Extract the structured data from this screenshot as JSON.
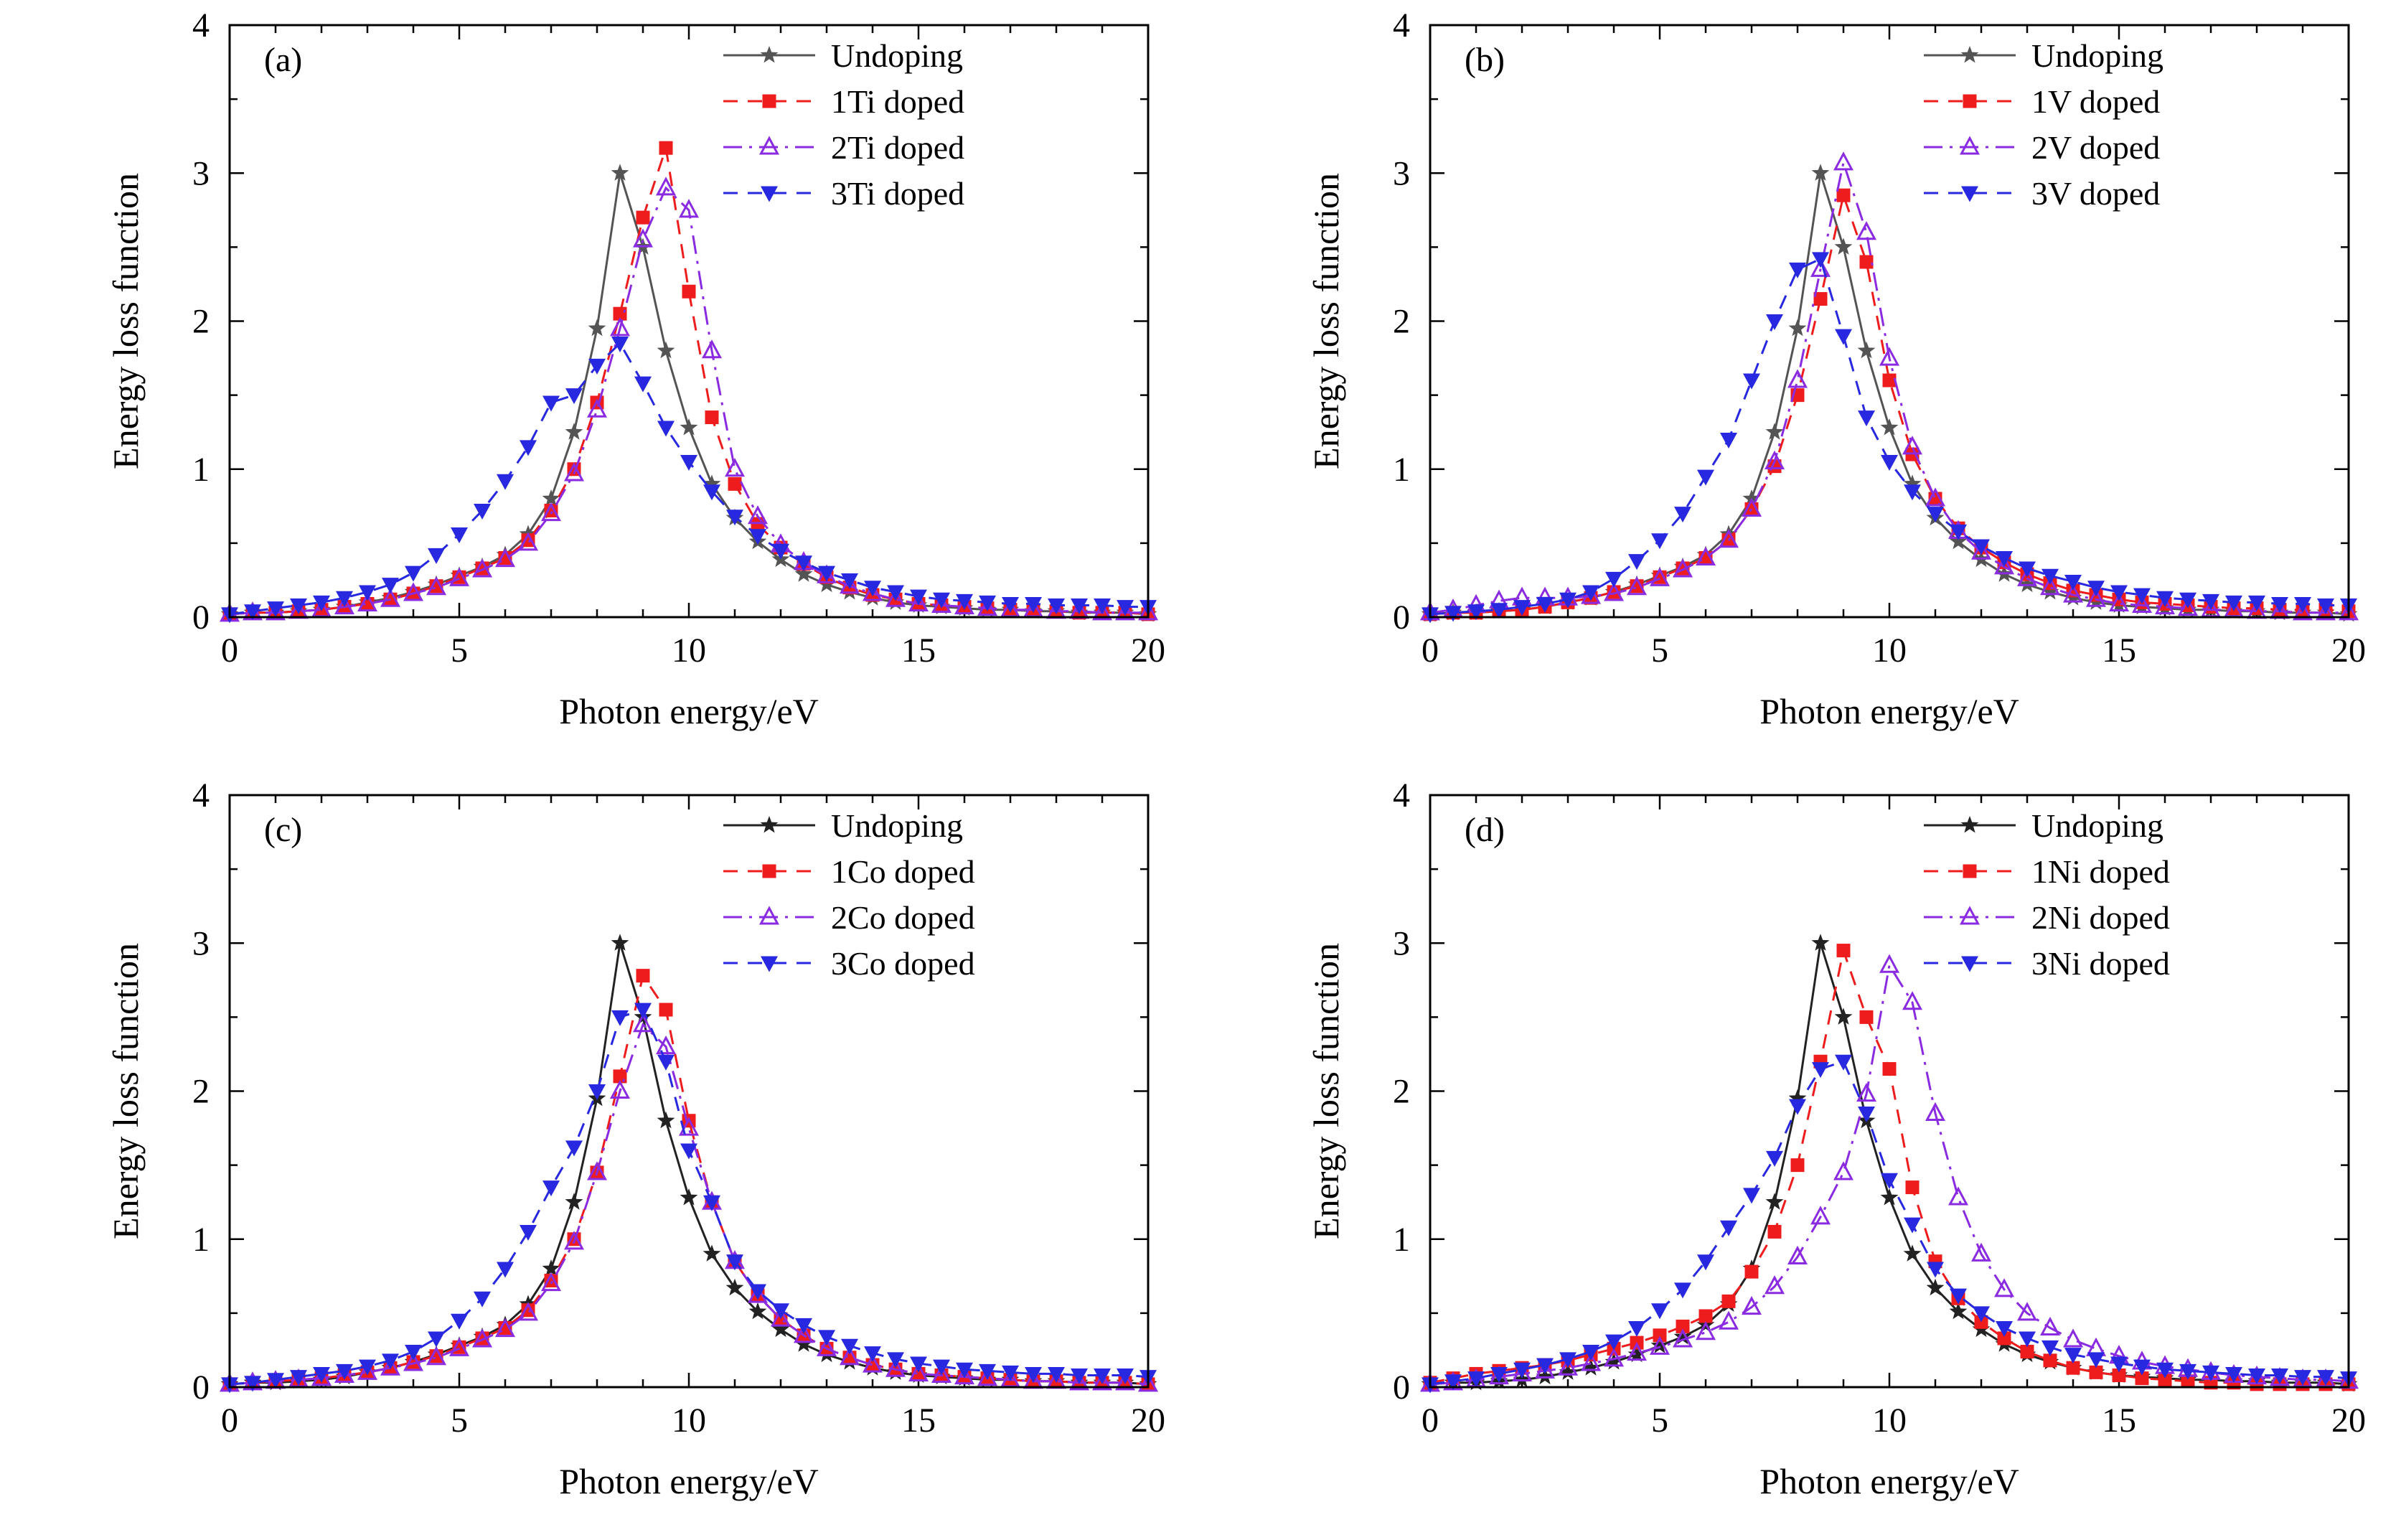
{
  "figure": {
    "background": "#ffffff",
    "frame_color": "#000000",
    "x_values": [
      0,
      0.5,
      1,
      1.5,
      2,
      2.5,
      3,
      3.5,
      4,
      4.5,
      5,
      5.5,
      6,
      6.5,
      7,
      7.5,
      8,
      8.5,
      9,
      9.5,
      10,
      10.5,
      11,
      11.5,
      12,
      12.5,
      13,
      13.5,
      14,
      14.5,
      15,
      15.5,
      16,
      16.5,
      17,
      17.5,
      18,
      18.5,
      19,
      19.5,
      20
    ]
  },
  "chart_data": [
    {
      "type": "line",
      "panel_label": "(a)",
      "title": "",
      "xlabel": "Photon energy/eV",
      "ylabel": "Energy loss function",
      "xlim": [
        0,
        20
      ],
      "ylim": [
        0,
        4
      ],
      "xticks": [
        0,
        5,
        10,
        15,
        20
      ],
      "yticks": [
        0,
        1,
        2,
        3,
        4
      ],
      "legend_position": "top-right",
      "series": [
        {
          "name": "Undoping",
          "color": "#545454",
          "line": "solid",
          "marker": "star",
          "values": [
            0.02,
            0.03,
            0.03,
            0.04,
            0.05,
            0.07,
            0.1,
            0.13,
            0.17,
            0.22,
            0.28,
            0.34,
            0.42,
            0.56,
            0.8,
            1.25,
            1.95,
            3.0,
            2.5,
            1.8,
            1.28,
            0.9,
            0.67,
            0.51,
            0.39,
            0.29,
            0.22,
            0.17,
            0.13,
            0.1,
            0.08,
            0.07,
            0.06,
            0.05,
            0.05,
            0.04,
            0.04,
            0.03,
            0.03,
            0.03,
            0.02
          ]
        },
        {
          "name": "1Ti doped",
          "color": "#ee1c1c",
          "line": "dashed",
          "marker": "square",
          "values": [
            0.02,
            0.03,
            0.03,
            0.04,
            0.05,
            0.07,
            0.09,
            0.12,
            0.16,
            0.21,
            0.27,
            0.33,
            0.4,
            0.52,
            0.72,
            1.0,
            1.45,
            2.05,
            2.7,
            3.17,
            2.2,
            1.35,
            0.9,
            0.63,
            0.47,
            0.36,
            0.27,
            0.2,
            0.15,
            0.12,
            0.09,
            0.08,
            0.07,
            0.06,
            0.05,
            0.04,
            0.04,
            0.03,
            0.03,
            0.03,
            0.02
          ]
        },
        {
          "name": "2Ti doped",
          "color": "#8a2be2",
          "line": "dashdot",
          "marker": "triangle-open",
          "values": [
            0.02,
            0.03,
            0.03,
            0.04,
            0.05,
            0.07,
            0.09,
            0.12,
            0.16,
            0.2,
            0.26,
            0.32,
            0.39,
            0.5,
            0.7,
            0.97,
            1.4,
            1.95,
            2.55,
            2.9,
            2.75,
            1.8,
            1.0,
            0.68,
            0.49,
            0.37,
            0.28,
            0.21,
            0.16,
            0.12,
            0.09,
            0.08,
            0.07,
            0.06,
            0.05,
            0.05,
            0.04,
            0.04,
            0.03,
            0.03,
            0.03
          ]
        },
        {
          "name": "3Ti doped",
          "color": "#2828e0",
          "line": "dashed",
          "marker": "triangle-down",
          "values": [
            0.02,
            0.04,
            0.06,
            0.08,
            0.1,
            0.13,
            0.17,
            0.22,
            0.3,
            0.42,
            0.56,
            0.72,
            0.92,
            1.15,
            1.45,
            1.5,
            1.7,
            1.85,
            1.58,
            1.28,
            1.05,
            0.85,
            0.68,
            0.55,
            0.45,
            0.37,
            0.3,
            0.25,
            0.2,
            0.17,
            0.14,
            0.12,
            0.11,
            0.1,
            0.09,
            0.09,
            0.08,
            0.08,
            0.08,
            0.07,
            0.07
          ]
        }
      ]
    },
    {
      "type": "line",
      "panel_label": "(b)",
      "title": "",
      "xlabel": "Photon energy/eV",
      "ylabel": "Energy loss function",
      "xlim": [
        0,
        20
      ],
      "ylim": [
        0,
        4
      ],
      "xticks": [
        0,
        5,
        10,
        15,
        20
      ],
      "yticks": [
        0,
        1,
        2,
        3,
        4
      ],
      "legend_position": "top-right",
      "series": [
        {
          "name": "Undoping",
          "color": "#545454",
          "line": "solid",
          "marker": "star",
          "values": [
            0.02,
            0.03,
            0.03,
            0.04,
            0.05,
            0.07,
            0.1,
            0.13,
            0.17,
            0.22,
            0.28,
            0.34,
            0.42,
            0.56,
            0.8,
            1.25,
            1.95,
            3.0,
            2.5,
            1.8,
            1.28,
            0.9,
            0.67,
            0.51,
            0.39,
            0.29,
            0.22,
            0.17,
            0.13,
            0.1,
            0.08,
            0.07,
            0.06,
            0.05,
            0.05,
            0.04,
            0.04,
            0.03,
            0.03,
            0.03,
            0.02
          ]
        },
        {
          "name": "1V doped",
          "color": "#ee1c1c",
          "line": "dashed",
          "marker": "square",
          "values": [
            0.02,
            0.03,
            0.03,
            0.04,
            0.05,
            0.07,
            0.1,
            0.13,
            0.17,
            0.21,
            0.27,
            0.33,
            0.4,
            0.52,
            0.73,
            1.02,
            1.5,
            2.15,
            2.85,
            2.4,
            1.6,
            1.1,
            0.8,
            0.6,
            0.47,
            0.37,
            0.29,
            0.23,
            0.18,
            0.15,
            0.12,
            0.1,
            0.09,
            0.08,
            0.07,
            0.06,
            0.06,
            0.05,
            0.05,
            0.05,
            0.04
          ]
        },
        {
          "name": "2V doped",
          "color": "#8a2be2",
          "line": "dashdot",
          "marker": "triangle-open",
          "values": [
            0.03,
            0.05,
            0.08,
            0.11,
            0.13,
            0.13,
            0.13,
            0.14,
            0.16,
            0.2,
            0.26,
            0.32,
            0.4,
            0.52,
            0.73,
            1.05,
            1.6,
            2.35,
            3.07,
            2.6,
            1.75,
            1.15,
            0.8,
            0.58,
            0.44,
            0.34,
            0.26,
            0.2,
            0.15,
            0.12,
            0.09,
            0.08,
            0.07,
            0.06,
            0.05,
            0.05,
            0.04,
            0.04,
            0.03,
            0.03,
            0.03
          ]
        },
        {
          "name": "3V doped",
          "color": "#2828e0",
          "line": "dashed",
          "marker": "triangle-down",
          "values": [
            0.02,
            0.03,
            0.04,
            0.05,
            0.07,
            0.09,
            0.12,
            0.17,
            0.26,
            0.38,
            0.52,
            0.7,
            0.95,
            1.2,
            1.6,
            2.0,
            2.35,
            2.42,
            1.9,
            1.35,
            1.05,
            0.85,
            0.7,
            0.58,
            0.48,
            0.4,
            0.33,
            0.28,
            0.24,
            0.2,
            0.17,
            0.15,
            0.13,
            0.12,
            0.11,
            0.1,
            0.1,
            0.09,
            0.09,
            0.08,
            0.08
          ]
        }
      ]
    },
    {
      "type": "line",
      "panel_label": "(c)",
      "title": "",
      "xlabel": "Photon energy/eV",
      "ylabel": "Energy loss function",
      "xlim": [
        0,
        20
      ],
      "ylim": [
        0,
        4
      ],
      "xticks": [
        0,
        5,
        10,
        15,
        20
      ],
      "yticks": [
        0,
        1,
        2,
        3,
        4
      ],
      "legend_position": "top-right",
      "series": [
        {
          "name": "Undoping",
          "color": "#222222",
          "line": "solid",
          "marker": "star",
          "values": [
            0.02,
            0.03,
            0.03,
            0.04,
            0.05,
            0.07,
            0.1,
            0.13,
            0.17,
            0.22,
            0.28,
            0.34,
            0.42,
            0.56,
            0.8,
            1.25,
            1.95,
            3.0,
            2.5,
            1.8,
            1.28,
            0.9,
            0.67,
            0.51,
            0.39,
            0.29,
            0.22,
            0.17,
            0.13,
            0.1,
            0.08,
            0.07,
            0.06,
            0.05,
            0.05,
            0.04,
            0.04,
            0.03,
            0.03,
            0.03,
            0.02
          ]
        },
        {
          "name": "1Co doped",
          "color": "#ee1c1c",
          "line": "dashed",
          "marker": "square",
          "values": [
            0.02,
            0.03,
            0.04,
            0.05,
            0.06,
            0.08,
            0.1,
            0.13,
            0.17,
            0.21,
            0.27,
            0.33,
            0.4,
            0.52,
            0.72,
            1.0,
            1.45,
            2.1,
            2.78,
            2.55,
            1.8,
            1.25,
            0.85,
            0.62,
            0.46,
            0.35,
            0.26,
            0.2,
            0.15,
            0.12,
            0.09,
            0.08,
            0.07,
            0.06,
            0.05,
            0.04,
            0.04,
            0.03,
            0.03,
            0.03,
            0.02
          ]
        },
        {
          "name": "2Co doped",
          "color": "#8a2be2",
          "line": "dashdot",
          "marker": "triangle-open",
          "values": [
            0.02,
            0.03,
            0.04,
            0.05,
            0.06,
            0.08,
            0.1,
            0.13,
            0.16,
            0.2,
            0.26,
            0.32,
            0.39,
            0.5,
            0.7,
            0.98,
            1.45,
            2.0,
            2.45,
            2.3,
            1.75,
            1.25,
            0.85,
            0.62,
            0.46,
            0.35,
            0.26,
            0.2,
            0.15,
            0.12,
            0.09,
            0.08,
            0.07,
            0.06,
            0.05,
            0.04,
            0.04,
            0.03,
            0.03,
            0.03,
            0.02
          ]
        },
        {
          "name": "3Co doped",
          "color": "#2828e0",
          "line": "dashed",
          "marker": "triangle-down",
          "values": [
            0.02,
            0.03,
            0.05,
            0.07,
            0.09,
            0.11,
            0.14,
            0.18,
            0.24,
            0.33,
            0.45,
            0.6,
            0.8,
            1.05,
            1.35,
            1.62,
            2.0,
            2.5,
            2.55,
            2.2,
            1.6,
            1.25,
            0.85,
            0.65,
            0.52,
            0.42,
            0.34,
            0.28,
            0.23,
            0.19,
            0.16,
            0.14,
            0.12,
            0.11,
            0.1,
            0.09,
            0.09,
            0.08,
            0.08,
            0.08,
            0.07
          ]
        }
      ]
    },
    {
      "type": "line",
      "panel_label": "(d)",
      "title": "",
      "xlabel": "Photon energy/eV",
      "ylabel": "Energy loss function",
      "xlim": [
        0,
        20
      ],
      "ylim": [
        0,
        4
      ],
      "xticks": [
        0,
        5,
        10,
        15,
        20
      ],
      "yticks": [
        0,
        1,
        2,
        3,
        4
      ],
      "legend_position": "top-right",
      "series": [
        {
          "name": "Undoping",
          "color": "#222222",
          "line": "solid",
          "marker": "star",
          "values": [
            0.02,
            0.03,
            0.03,
            0.04,
            0.05,
            0.07,
            0.1,
            0.13,
            0.17,
            0.22,
            0.28,
            0.34,
            0.42,
            0.56,
            0.8,
            1.25,
            1.95,
            3.0,
            2.5,
            1.8,
            1.28,
            0.9,
            0.67,
            0.51,
            0.39,
            0.29,
            0.22,
            0.17,
            0.13,
            0.1,
            0.08,
            0.07,
            0.06,
            0.05,
            0.05,
            0.04,
            0.04,
            0.03,
            0.03,
            0.03,
            0.02
          ]
        },
        {
          "name": "1Ni doped",
          "color": "#ee1c1c",
          "line": "dashed",
          "marker": "square",
          "values": [
            0.03,
            0.06,
            0.09,
            0.11,
            0.13,
            0.15,
            0.18,
            0.22,
            0.26,
            0.3,
            0.35,
            0.41,
            0.48,
            0.58,
            0.78,
            1.05,
            1.5,
            2.2,
            2.95,
            2.5,
            2.15,
            1.35,
            0.85,
            0.6,
            0.44,
            0.33,
            0.24,
            0.18,
            0.13,
            0.1,
            0.08,
            0.06,
            0.05,
            0.04,
            0.03,
            0.03,
            0.02,
            0.02,
            0.02,
            0.02,
            0.02
          ]
        },
        {
          "name": "2Ni doped",
          "color": "#8a2be2",
          "line": "dashdot",
          "marker": "triangle-open",
          "values": [
            0.02,
            0.03,
            0.05,
            0.07,
            0.09,
            0.11,
            0.13,
            0.16,
            0.19,
            0.23,
            0.27,
            0.32,
            0.37,
            0.44,
            0.54,
            0.68,
            0.88,
            1.15,
            1.45,
            1.98,
            2.85,
            2.6,
            1.85,
            1.28,
            0.9,
            0.66,
            0.5,
            0.4,
            0.32,
            0.26,
            0.21,
            0.17,
            0.14,
            0.12,
            0.1,
            0.08,
            0.07,
            0.06,
            0.05,
            0.05,
            0.04
          ]
        },
        {
          "name": "3Ni doped",
          "color": "#2828e0",
          "line": "dashed",
          "marker": "triangle-down",
          "values": [
            0.02,
            0.04,
            0.06,
            0.09,
            0.12,
            0.15,
            0.19,
            0.24,
            0.31,
            0.4,
            0.52,
            0.66,
            0.85,
            1.08,
            1.3,
            1.55,
            1.9,
            2.15,
            2.2,
            1.85,
            1.4,
            1.1,
            0.8,
            0.62,
            0.5,
            0.4,
            0.33,
            0.27,
            0.22,
            0.19,
            0.16,
            0.14,
            0.12,
            0.11,
            0.1,
            0.09,
            0.08,
            0.08,
            0.07,
            0.07,
            0.06
          ]
        }
      ]
    }
  ]
}
